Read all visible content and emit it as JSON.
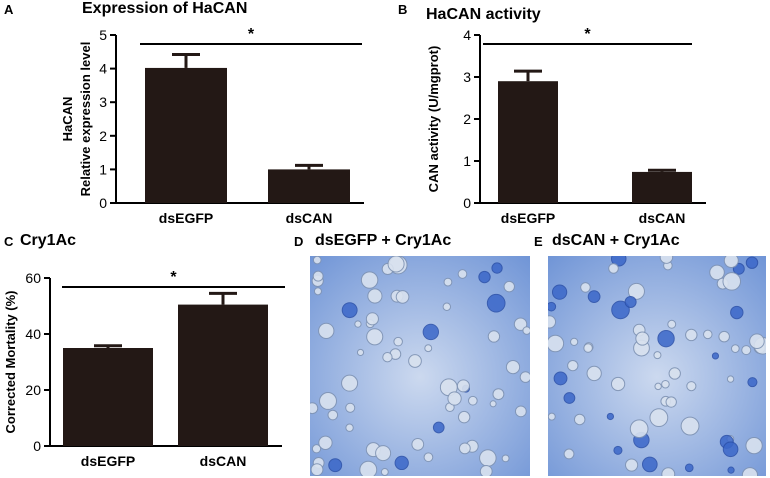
{
  "panels": {
    "A": {
      "letter": "A",
      "title": "Expression of HaCAN"
    },
    "B": {
      "letter": "B",
      "title": "HaCAN activity"
    },
    "C": {
      "letter": "C",
      "title": "Cry1Ac"
    },
    "D": {
      "letter": "D",
      "title": "dsEGFP + Cry1Ac"
    },
    "E": {
      "letter": "E",
      "title": "dsCAN + Cry1Ac"
    }
  },
  "colors": {
    "bar": "#231815",
    "axis": "#000000",
    "micro_bg": "#bfd0ea",
    "stain": "#3b67c9"
  },
  "chart_data": [
    {
      "id": "A",
      "type": "bar",
      "title": "Expression of HaCAN",
      "ylabel_lines": [
        "HaCAN",
        "Relative expression level"
      ],
      "categories": [
        "dsEGFP",
        "dsCAN"
      ],
      "values": [
        4.02,
        1.0
      ],
      "errors": [
        0.4,
        0.12
      ],
      "ylim": [
        0,
        5
      ],
      "yticks": [
        0,
        1,
        2,
        3,
        4,
        5
      ],
      "significance": "*"
    },
    {
      "id": "B",
      "type": "bar",
      "title": "HaCAN activity",
      "ylabel_lines": [
        "CAN activity (U/mgprot)"
      ],
      "categories": [
        "dsEGFP",
        "dsCAN"
      ],
      "values": [
        2.9,
        0.74
      ],
      "errors": [
        0.24,
        0.04
      ],
      "ylim": [
        0,
        4
      ],
      "yticks": [
        0,
        1,
        2,
        3,
        4
      ],
      "significance": "*"
    },
    {
      "id": "C",
      "type": "bar",
      "title": "Cry1Ac",
      "ylabel_lines": [
        "Corrected Mortality (%)"
      ],
      "categories": [
        "dsEGFP",
        "dsCAN"
      ],
      "values": [
        35.0,
        50.5
      ],
      "errors": [
        0.8,
        4.0
      ],
      "ylim": [
        0,
        60
      ],
      "yticks": [
        0,
        20,
        40,
        60
      ],
      "significance": "*"
    }
  ]
}
